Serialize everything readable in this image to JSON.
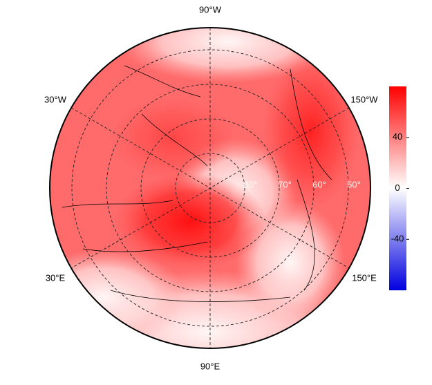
{
  "map": {
    "meridian_labels": [
      "90°W",
      "30°W",
      "150°W",
      "30°E",
      "150°E",
      "90°E"
    ],
    "latitude_labels": [
      "80°",
      "70°",
      "60°",
      "50°"
    ],
    "colorbar": {
      "range": [
        -80,
        80
      ],
      "ticks": [
        40,
        0,
        -40
      ]
    }
  }
}
